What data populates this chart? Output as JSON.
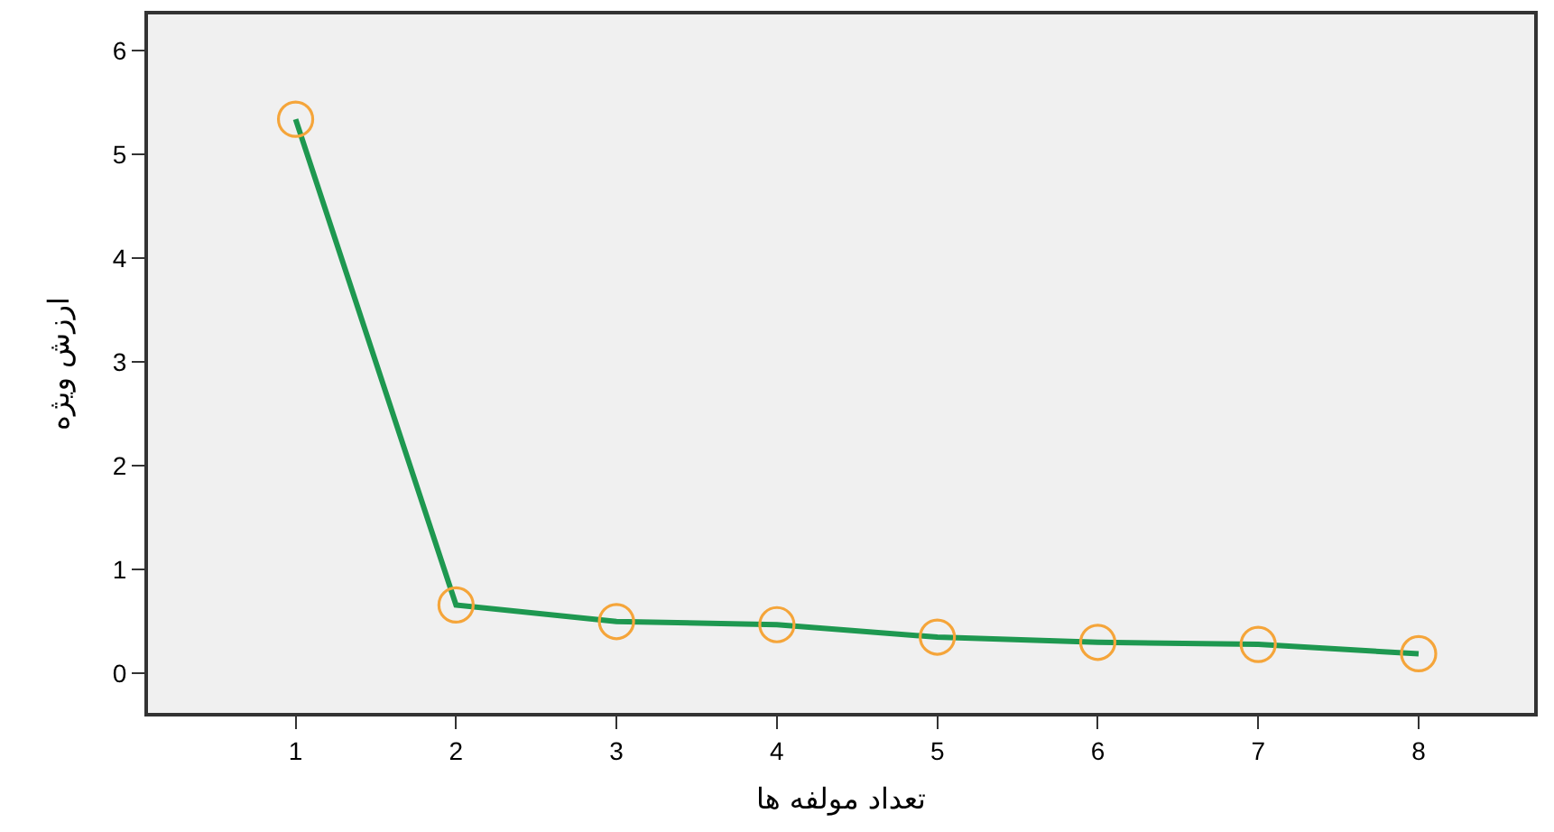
{
  "chart_data": {
    "type": "line",
    "xlabel": "تعداد مولفه ها",
    "ylabel": "ارزش ویژه",
    "x": [
      1,
      2,
      3,
      4,
      5,
      6,
      7,
      8
    ],
    "series": [
      {
        "color": "#1e9850",
        "colors": [
          "#f5a53a",
          "#f5a53a",
          "#f5a53a",
          "#f5a53a",
          "#f5a53a",
          "#f5a53a",
          "#f5a53a",
          "#f5a53a"
        ],
        "values": [
          5.34,
          0.66,
          0.5,
          0.47,
          0.35,
          0.3,
          0.28,
          0.19
        ]
      }
    ],
    "xlim": [
      0.08,
      8.72
    ],
    "xticks": [
      1,
      2,
      3,
      4,
      5,
      6,
      7,
      8
    ],
    "ylim": [
      -0.38,
      6.35
    ],
    "yticks": [
      0,
      1,
      2,
      3,
      4,
      5,
      6
    ],
    "grid": false,
    "marker": "circle",
    "line_style": "solid"
  }
}
